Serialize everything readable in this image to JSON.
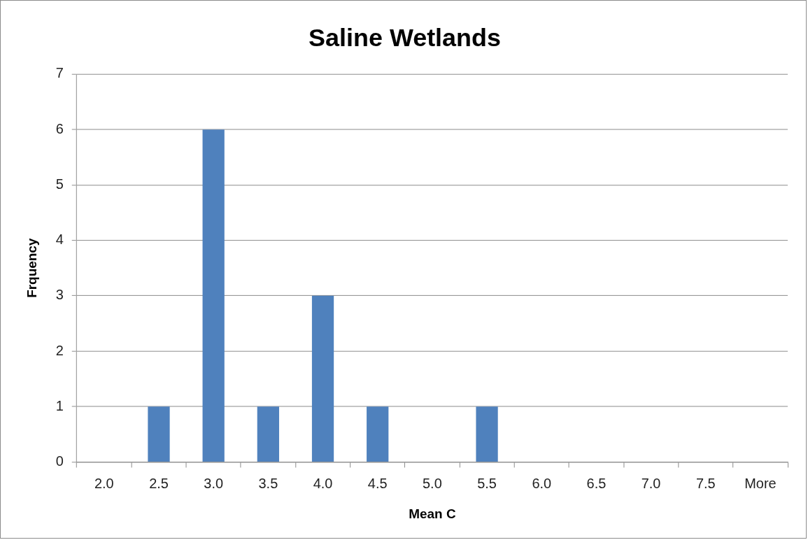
{
  "chart_data": {
    "type": "bar",
    "title": "Saline Wetlands",
    "xlabel": "Mean C",
    "ylabel": "Frquency",
    "categories": [
      "2.0",
      "2.5",
      "3.0",
      "3.5",
      "4.0",
      "4.5",
      "5.0",
      "5.5",
      "6.0",
      "6.5",
      "7.0",
      "7.5",
      "More"
    ],
    "values": [
      0,
      1,
      6,
      1,
      3,
      1,
      0,
      1,
      0,
      0,
      0,
      0,
      0
    ],
    "color": "#4f81bd",
    "ylim": [
      0,
      7
    ],
    "yticks": [
      0,
      1,
      2,
      3,
      4,
      5,
      6,
      7
    ],
    "grid": "y"
  }
}
